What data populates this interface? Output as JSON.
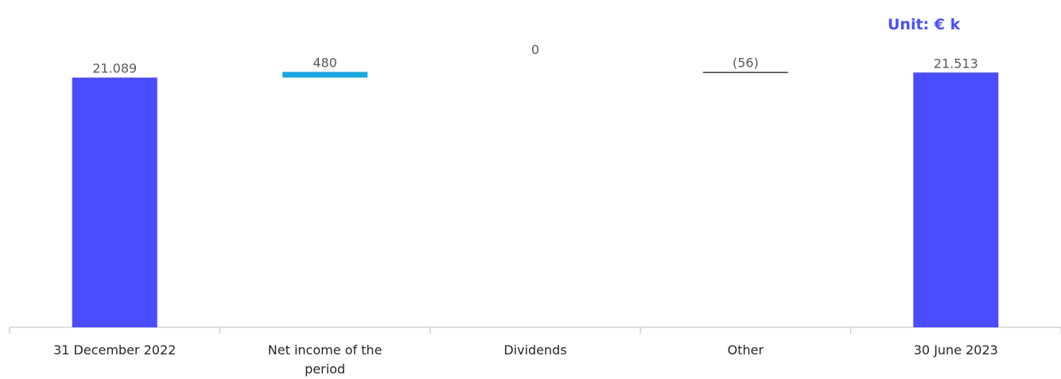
{
  "unit_label": "Unit: € k",
  "colors": {
    "total": "#4a4dff",
    "increase": "#1aa7e0",
    "decrease": "#404040",
    "unit_text": "#4a4dff",
    "axis": "#bfbfbf"
  },
  "chart_data": {
    "type": "bar",
    "subtype": "waterfall",
    "categories": [
      "31 December 2022",
      "Net income of the period",
      "Dividends",
      "Other",
      "30 June 2023"
    ],
    "category_lines": [
      [
        "31 December 2022"
      ],
      [
        "Net income of the",
        "period"
      ],
      [
        "Dividends"
      ],
      [
        "Other"
      ],
      [
        "30 June 2023"
      ]
    ],
    "values": [
      21089,
      480,
      0,
      -56,
      21513
    ],
    "value_labels": [
      "21.089",
      "480",
      "0",
      "(56)",
      "21.513"
    ],
    "kinds": [
      "total",
      "delta",
      "delta",
      "delta",
      "total"
    ],
    "ylim": [
      0,
      21600
    ],
    "grid": false,
    "legend": "none"
  }
}
